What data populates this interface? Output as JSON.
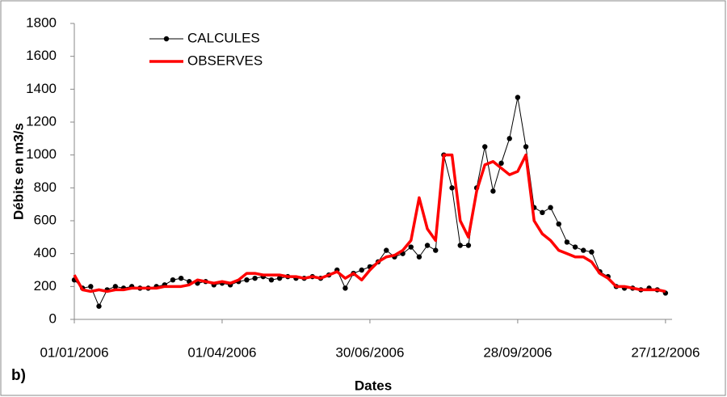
{
  "chart_data": {
    "type": "line",
    "x_label": "Dates",
    "y_label": "Débits en m3/s",
    "annotation": "b)",
    "x": [
      "01/01/2006",
      "06/01/2006",
      "11/01/2006",
      "16/01/2006",
      "21/01/2006",
      "26/01/2006",
      "31/01/2006",
      "05/02/2006",
      "10/02/2006",
      "15/02/2006",
      "20/02/2006",
      "25/02/2006",
      "02/03/2006",
      "07/03/2006",
      "12/03/2006",
      "17/03/2006",
      "22/03/2006",
      "27/03/2006",
      "01/04/2006",
      "06/04/2006",
      "11/04/2006",
      "16/04/2006",
      "21/04/2006",
      "26/04/2006",
      "01/05/2006",
      "06/05/2006",
      "11/05/2006",
      "16/05/2006",
      "21/05/2006",
      "26/05/2006",
      "31/05/2006",
      "05/06/2006",
      "10/06/2006",
      "15/06/2006",
      "20/06/2006",
      "25/06/2006",
      "30/06/2006",
      "05/07/2006",
      "10/07/2006",
      "15/07/2006",
      "20/07/2006",
      "25/07/2006",
      "30/07/2006",
      "04/08/2006",
      "09/08/2006",
      "14/08/2006",
      "19/08/2006",
      "24/08/2006",
      "29/08/2006",
      "03/09/2006",
      "08/09/2006",
      "13/09/2006",
      "18/09/2006",
      "23/09/2006",
      "28/09/2006",
      "03/10/2006",
      "08/10/2006",
      "13/10/2006",
      "18/10/2006",
      "23/10/2006",
      "28/10/2006",
      "02/11/2006",
      "07/11/2006",
      "12/11/2006",
      "17/11/2006",
      "22/11/2006",
      "27/11/2006",
      "02/12/2006",
      "07/12/2006",
      "12/12/2006",
      "17/12/2006",
      "22/12/2006",
      "27/12/2006"
    ],
    "series": [
      {
        "name": "CALCULES",
        "color": "#000000",
        "markers": true,
        "values": [
          240,
          190,
          200,
          80,
          180,
          200,
          190,
          200,
          190,
          190,
          200,
          210,
          240,
          250,
          230,
          220,
          230,
          210,
          220,
          210,
          230,
          240,
          250,
          260,
          240,
          250,
          260,
          250,
          250,
          260,
          250,
          270,
          300,
          190,
          280,
          300,
          320,
          350,
          420,
          380,
          400,
          440,
          380,
          450,
          420,
          1000,
          800,
          450,
          450,
          800,
          1050,
          780,
          950,
          1100,
          1350,
          1050,
          680,
          650,
          680,
          580,
          470,
          440,
          420,
          410,
          290,
          260,
          200,
          190,
          190,
          180,
          190,
          180,
          160
        ]
      },
      {
        "name": "OBSERVES",
        "color": "#ff0000",
        "markers": false,
        "values": [
          270,
          180,
          170,
          180,
          170,
          180,
          180,
          190,
          190,
          190,
          190,
          200,
          200,
          200,
          210,
          240,
          230,
          220,
          230,
          220,
          240,
          280,
          280,
          270,
          270,
          270,
          260,
          260,
          250,
          260,
          250,
          270,
          290,
          250,
          280,
          240,
          300,
          350,
          380,
          390,
          420,
          480,
          740,
          550,
          480,
          1000,
          1000,
          600,
          500,
          780,
          940,
          960,
          920,
          880,
          900,
          1000,
          600,
          520,
          480,
          420,
          400,
          380,
          380,
          350,
          280,
          250,
          200,
          200,
          190,
          180,
          180,
          180,
          170
        ]
      }
    ],
    "xlim": [
      "01/01/2006",
      "31/12/2006"
    ],
    "xticks": [
      "01/01/2006",
      "01/04/2006",
      "30/06/2006",
      "28/09/2006",
      "27/12/2006"
    ],
    "ylim": [
      0,
      1800
    ],
    "yticks": [
      0,
      200,
      400,
      600,
      800,
      1000,
      1200,
      1400,
      1600,
      1800
    ],
    "legend": "upper left"
  }
}
